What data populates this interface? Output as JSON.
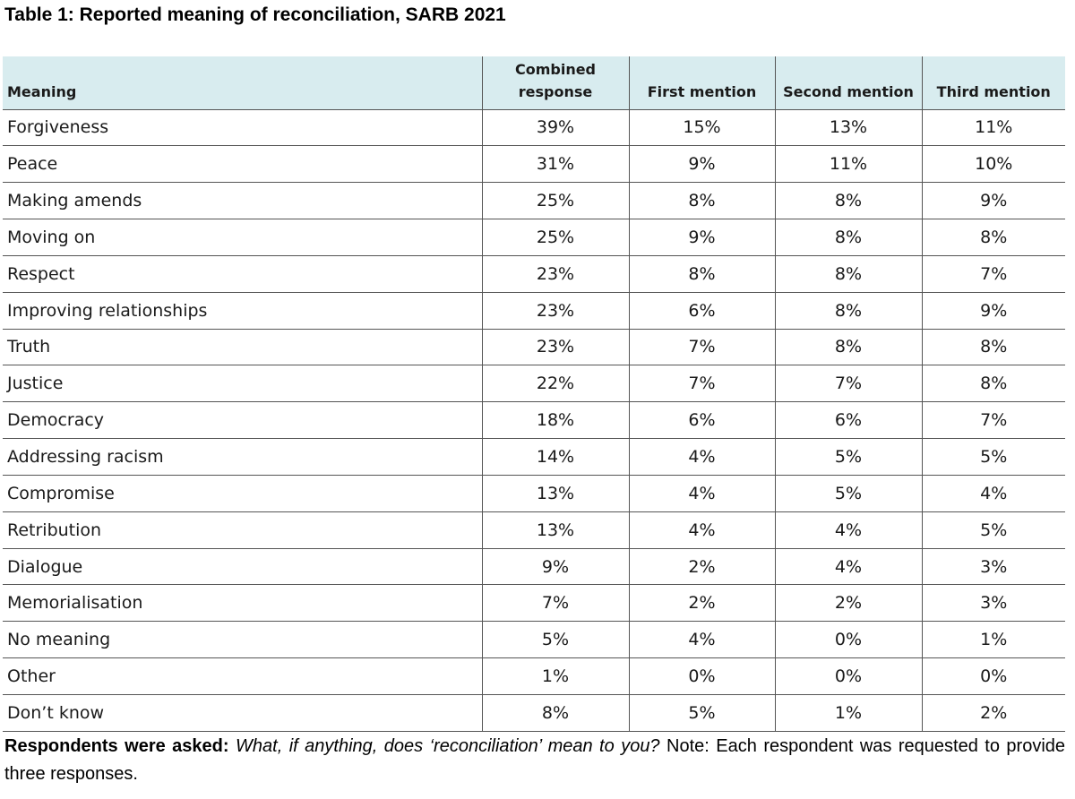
{
  "title": "Table 1: Reported meaning of reconciliation, SARB 2021",
  "table": {
    "headers": [
      "Meaning",
      "Combined response",
      "First mention",
      "Second mention",
      "Third mention"
    ],
    "rows": [
      [
        "Forgiveness",
        "39%",
        "15%",
        "13%",
        "11%"
      ],
      [
        "Peace",
        "31%",
        "9%",
        "11%",
        "10%"
      ],
      [
        "Making amends",
        "25%",
        "8%",
        "8%",
        "9%"
      ],
      [
        "Moving on",
        "25%",
        "9%",
        "8%",
        "8%"
      ],
      [
        "Respect",
        "23%",
        "8%",
        "8%",
        "7%"
      ],
      [
        "Improving relationships",
        "23%",
        "6%",
        "8%",
        "9%"
      ],
      [
        "Truth",
        "23%",
        "7%",
        "8%",
        "8%"
      ],
      [
        "Justice",
        "22%",
        "7%",
        "7%",
        "8%"
      ],
      [
        "Democracy",
        "18%",
        "6%",
        "6%",
        "7%"
      ],
      [
        "Addressing racism",
        "14%",
        "4%",
        "5%",
        "5%"
      ],
      [
        "Compromise",
        "13%",
        "4%",
        "5%",
        "4%"
      ],
      [
        "Retribution",
        "13%",
        "4%",
        "4%",
        "5%"
      ],
      [
        "Dialogue",
        "9%",
        "2%",
        "4%",
        "3%"
      ],
      [
        "Memorialisation",
        "7%",
        "2%",
        "2%",
        "3%"
      ],
      [
        "No meaning",
        "5%",
        "4%",
        "0%",
        "1%"
      ],
      [
        "Other",
        "1%",
        "0%",
        "0%",
        "0%"
      ],
      [
        "Don’t know",
        "8%",
        "5%",
        "1%",
        "2%"
      ]
    ]
  },
  "footnote": {
    "lead": "Respondents were asked:",
    "question": "What, if anything, does ‘reconciliation’ mean to you?",
    "note": "Note: Each respondent was requested to provide three responses."
  },
  "colors": {
    "header_bg": "#d8ecef",
    "grid": "#555555"
  }
}
